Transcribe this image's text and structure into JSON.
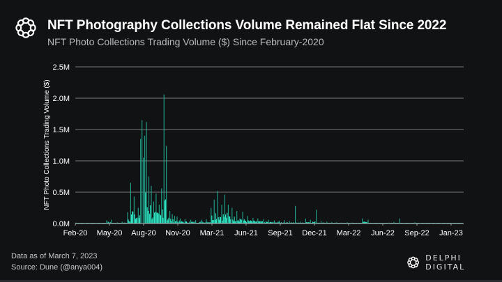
{
  "header": {
    "title": "NFT Photography Collections Volume Remained Flat Since 2022",
    "subtitle": "NFT Photo Collections Trading Volume ($) Since February-2020",
    "logo_icon": "delphi-knot-icon"
  },
  "footer": {
    "data_as_of": "Data as of March 7, 2023",
    "source": "Source: Dune (@anya004)",
    "brand": "DELPHI DIGITAL"
  },
  "colors": {
    "background": "#111214",
    "bars": "#2ee6c4",
    "bars_dim": "#1fa88f",
    "grid": "#7a7b7e",
    "text": "#ffffff"
  },
  "chart_data": {
    "type": "bar",
    "title": "NFT Photography Collections Volume Remained Flat Since 2022",
    "subtitle": "NFT Photo Collections Trading Volume ($) Since February-2020",
    "xlabel": "",
    "ylabel": "NFT Photo Collections Trading Volume ($)",
    "ylim": [
      0,
      2500000
    ],
    "yticks": [
      0,
      500000,
      1000000,
      1500000,
      2000000,
      2500000
    ],
    "ytick_labels": [
      "0.0M",
      "0.5M",
      "1.0M",
      "1.5M",
      "2.0M",
      "2.5M"
    ],
    "xtick_labels": [
      "Feb-20",
      "May-20",
      "Aug-20",
      "Nov-20",
      "Mar-21",
      "Jun-21",
      "Sep-21",
      "Dec-21",
      "Mar-22",
      "Jun-22",
      "Sep-22",
      "Jan-23"
    ],
    "grid": "horizontal",
    "legend": "none",
    "granularity": "daily (approximated as weekly-resolution peaks below)",
    "series": [
      {
        "name": "Trading Volume ($)",
        "x": [
          "2020-02-01",
          "2020-02-15",
          "2020-03-01",
          "2020-03-15",
          "2020-04-01",
          "2020-04-15",
          "2020-05-01",
          "2020-05-15",
          "2020-06-01",
          "2020-06-15",
          "2020-07-01",
          "2020-07-10",
          "2020-07-20",
          "2020-08-01",
          "2020-08-08",
          "2020-08-12",
          "2020-08-16",
          "2020-08-20",
          "2020-08-25",
          "2020-09-01",
          "2020-09-08",
          "2020-09-15",
          "2020-09-22",
          "2020-10-01",
          "2020-10-08",
          "2020-10-15",
          "2020-10-22",
          "2020-11-01",
          "2020-11-08",
          "2020-11-15",
          "2020-11-22",
          "2020-12-01",
          "2020-12-15",
          "2021-01-01",
          "2021-01-15",
          "2021-02-01",
          "2021-02-15",
          "2021-03-01",
          "2021-03-10",
          "2021-03-20",
          "2021-04-01",
          "2021-04-10",
          "2021-04-20",
          "2021-05-01",
          "2021-05-15",
          "2021-06-01",
          "2021-06-15",
          "2021-07-01",
          "2021-07-15",
          "2021-08-01",
          "2021-08-15",
          "2021-09-01",
          "2021-09-15",
          "2021-10-01",
          "2021-10-15",
          "2021-11-01",
          "2021-11-15",
          "2021-12-01",
          "2021-12-15",
          "2022-01-01",
          "2022-01-15",
          "2022-02-01",
          "2022-02-15",
          "2022-03-01",
          "2022-03-15",
          "2022-04-01",
          "2022-04-15",
          "2022-05-01",
          "2022-05-15",
          "2022-06-01",
          "2022-06-15",
          "2022-07-01",
          "2022-07-15",
          "2022-08-01",
          "2022-08-15",
          "2022-09-01",
          "2022-09-15",
          "2022-10-01",
          "2022-10-15",
          "2022-11-01",
          "2022-11-15",
          "2022-12-01",
          "2022-12-15",
          "2023-01-01",
          "2023-01-15",
          "2023-02-01",
          "2023-02-15",
          "2023-03-01"
        ],
        "values": [
          15000,
          5000,
          8000,
          4000,
          10000,
          12000,
          50000,
          60000,
          20000,
          30000,
          180000,
          650000,
          430000,
          250000,
          1350000,
          1650000,
          1050000,
          1400000,
          1620000,
          750000,
          600000,
          350000,
          480000,
          300000,
          560000,
          2060000,
          1240000,
          200000,
          150000,
          120000,
          110000,
          80000,
          70000,
          60000,
          55000,
          60000,
          70000,
          250000,
          380000,
          520000,
          300000,
          460000,
          300000,
          250000,
          200000,
          190000,
          120000,
          90000,
          80000,
          70000,
          60000,
          50000,
          45000,
          55000,
          40000,
          280000,
          30000,
          80000,
          60000,
          220000,
          40000,
          30000,
          25000,
          20000,
          15000,
          20000,
          15000,
          12000,
          80000,
          60000,
          10000,
          10000,
          12000,
          15000,
          25000,
          80000,
          10000,
          8000,
          20000,
          10000,
          8000,
          10000,
          12000,
          8000,
          6000,
          5000,
          4000,
          3000
        ]
      }
    ]
  }
}
